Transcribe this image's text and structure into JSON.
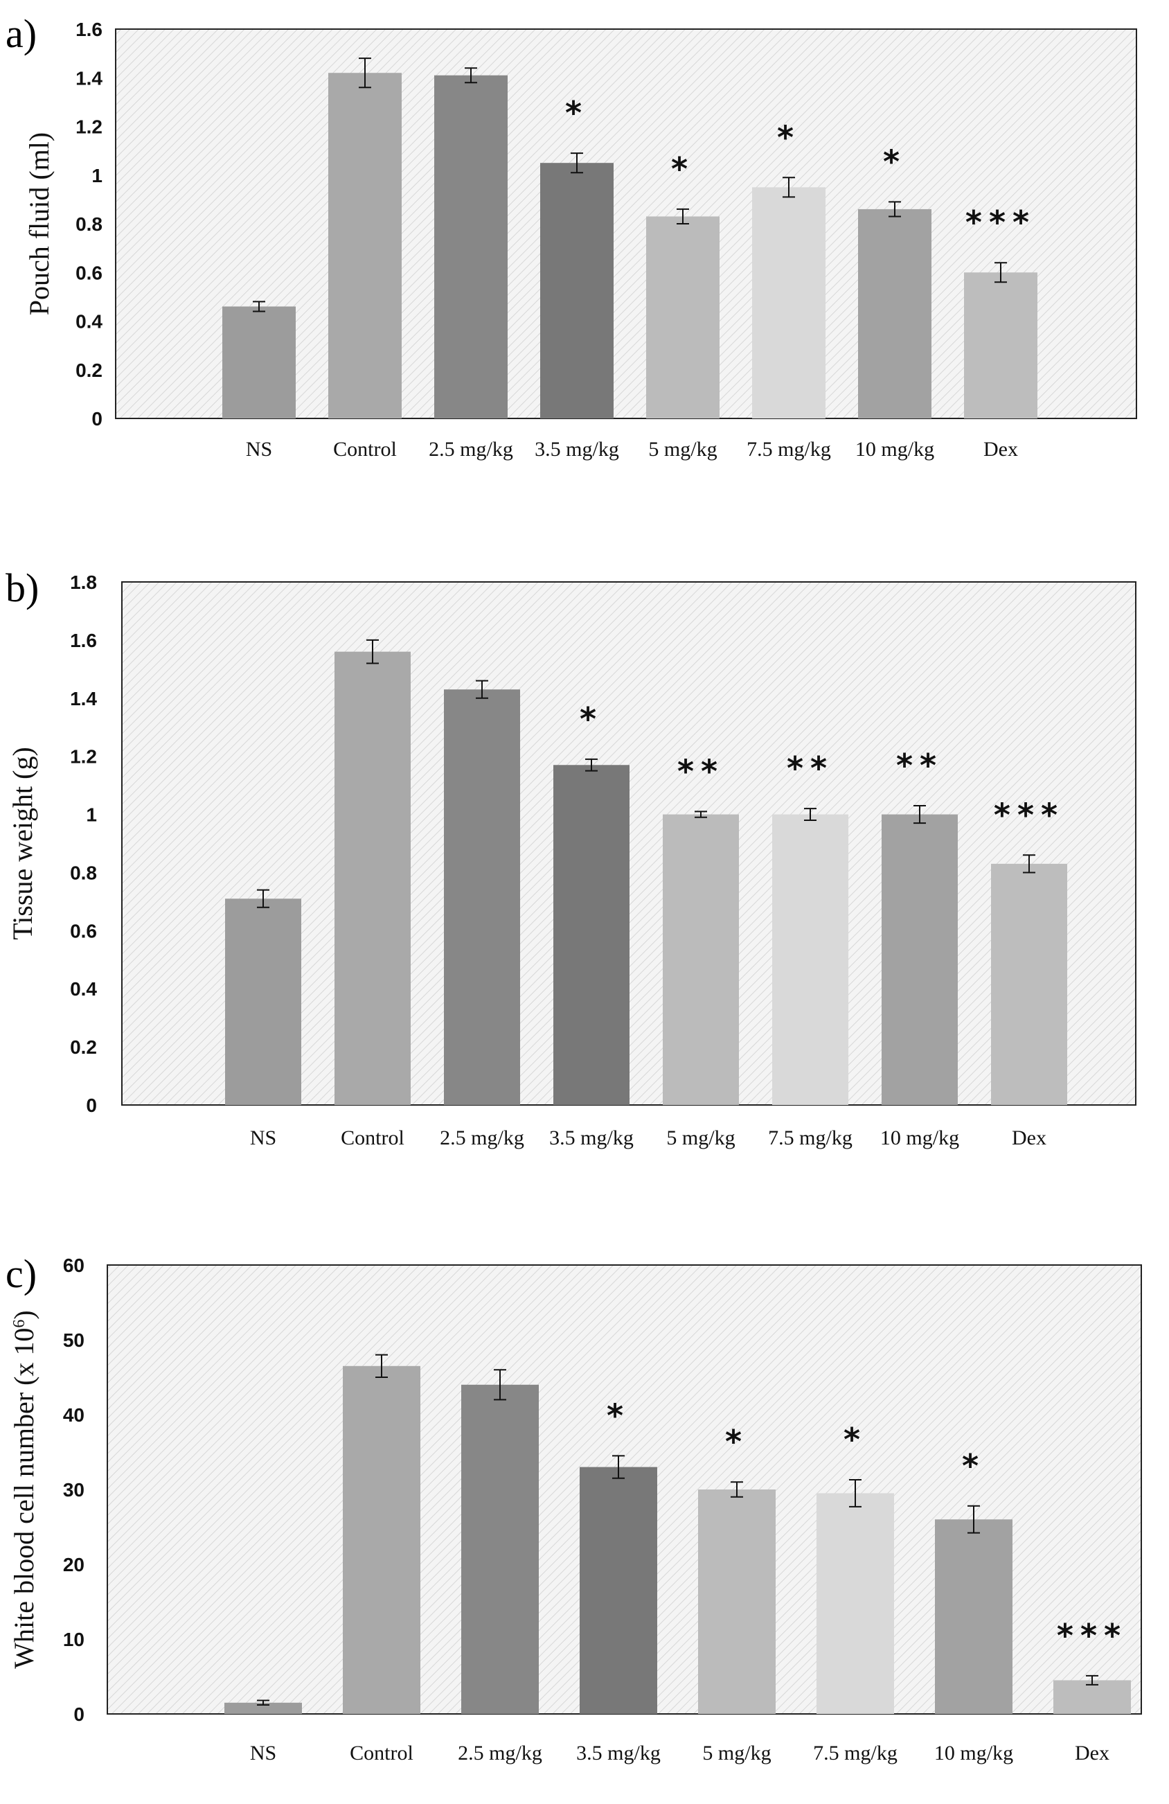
{
  "chart_data": [
    {
      "type": "bar",
      "panel_label": "a)",
      "ylabel": "Pouch  fluid (ml)",
      "xlabel": "",
      "ylim": [
        0,
        1.6
      ],
      "yticks": [
        "0",
        "0.2",
        "0.4",
        "0.6",
        "0.8",
        "1",
        "1.2",
        "1.4",
        "1.6"
      ],
      "grid": false,
      "categories": [
        "NS",
        "Control",
        "2.5 mg/kg",
        "3.5 mg/kg",
        "5 mg/kg",
        "7.5 mg/kg",
        "10 mg/kg",
        "Dex"
      ],
      "values": [
        0.46,
        1.42,
        1.41,
        1.05,
        0.83,
        0.95,
        0.86,
        0.6
      ],
      "errors": [
        0.02,
        0.06,
        0.03,
        0.04,
        0.03,
        0.04,
        0.03,
        0.04
      ],
      "significance": [
        "",
        "",
        "",
        "*",
        "*",
        "*",
        "*",
        "***"
      ],
      "bar_colors": [
        "#9c9c9c",
        "#a9a9a9",
        "#878787",
        "#787878",
        "#bbbbbb",
        "#d9d9d9",
        "#a2a2a2",
        "#bdbdbd"
      ]
    },
    {
      "type": "bar",
      "panel_label": "b)",
      "ylabel": "Tissue weight (g)",
      "xlabel": "",
      "ylim": [
        0,
        1.8
      ],
      "yticks": [
        "0",
        "0.2",
        "0.4",
        "0.6",
        "0.8",
        "1",
        "1.2",
        "1.4",
        "1.6",
        "1.8"
      ],
      "grid": false,
      "categories": [
        "NS",
        "Control",
        "2.5 mg/kg",
        "3.5 mg/kg",
        "5 mg/kg",
        "7.5 mg/kg",
        "10 mg/kg",
        "Dex"
      ],
      "values": [
        0.71,
        1.56,
        1.43,
        1.17,
        1.0,
        1.0,
        1.0,
        0.83
      ],
      "errors": [
        0.03,
        0.04,
        0.03,
        0.02,
        0.01,
        0.02,
        0.03,
        0.03
      ],
      "significance": [
        "",
        "",
        "",
        "*",
        "**",
        "**",
        "**",
        "***"
      ],
      "bar_colors": [
        "#9c9c9c",
        "#a9a9a9",
        "#878787",
        "#787878",
        "#bbbbbb",
        "#d9d9d9",
        "#a2a2a2",
        "#bdbdbd"
      ]
    },
    {
      "type": "bar",
      "panel_label": "c)",
      "ylabel": "White blood cell number (x 10",
      "ylabel_sup": "6",
      "ylabel_close": ")",
      "xlabel": "",
      "ylim": [
        0,
        60
      ],
      "yticks": [
        "0",
        "10",
        "20",
        "30",
        "40",
        "50",
        "60"
      ],
      "grid": false,
      "categories": [
        "NS",
        "Control",
        "2.5 mg/kg",
        "3.5 mg/kg",
        "5 mg/kg",
        "7.5 mg/kg",
        "10 mg/kg",
        "Dex"
      ],
      "values": [
        1.5,
        46.5,
        44.0,
        33.0,
        30.0,
        29.5,
        26.0,
        4.5
      ],
      "errors": [
        0.3,
        1.5,
        2.0,
        1.5,
        1.0,
        1.8,
        1.8,
        0.6
      ],
      "significance": [
        "",
        "",
        "",
        "*",
        "*",
        "*",
        "*",
        "***"
      ],
      "bar_colors": [
        "#9c9c9c",
        "#a9a9a9",
        "#878787",
        "#787878",
        "#bbbbbb",
        "#d9d9d9",
        "#a2a2a2",
        "#bdbdbd"
      ]
    }
  ]
}
